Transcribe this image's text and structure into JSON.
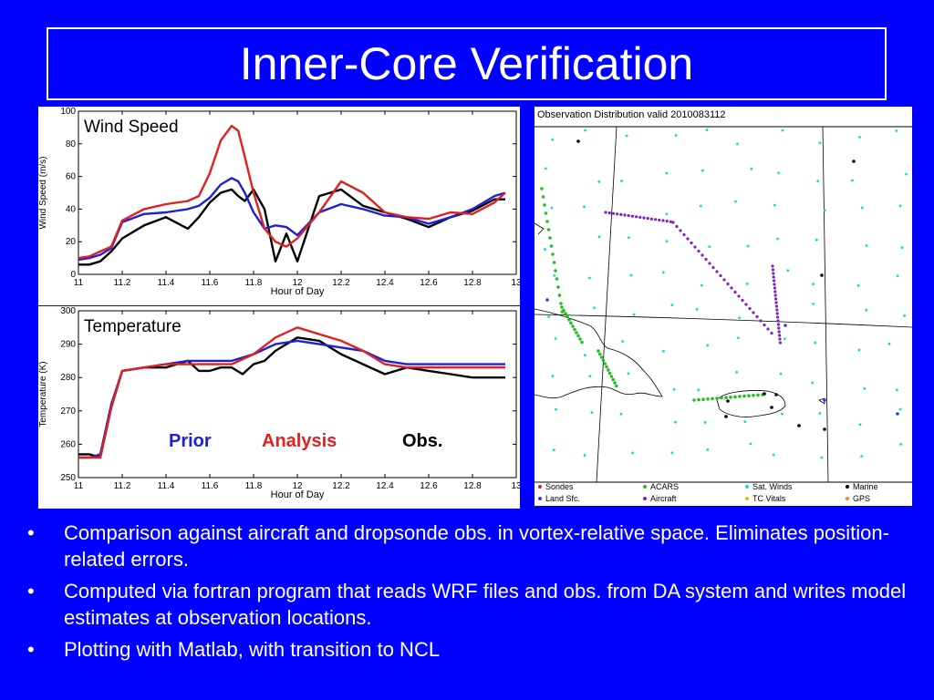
{
  "title": "Inner-Core Verification",
  "bullets": [
    "Comparison against aircraft and dropsonde obs. in vortex-relative space. Eliminates position-related errors.",
    "Computed via fortran program that reads WRF files and obs. from DA system and writes model estimates at observation locations.",
    "Plotting with Matlab, with transition to NCL"
  ],
  "bullet_symbol": "•",
  "legend": {
    "prior": "Prior",
    "analysis": "Analysis",
    "obs": "Obs."
  },
  "colors": {
    "prior": "#1f1fd6",
    "analysis": "#e02020",
    "obs": "#000000",
    "background": "#0000ff"
  },
  "chart_data": [
    {
      "type": "line",
      "title": "Wind Speed",
      "xlabel": "Hour of Day",
      "ylabel": "Wind Speed (m/s)",
      "xlim": [
        11,
        13
      ],
      "ylim": [
        0,
        100
      ],
      "xticks": [
        "11",
        "11.2",
        "11.4",
        "11.6",
        "11.8",
        "12",
        "12.2",
        "12.4",
        "12.6",
        "12.8",
        "13"
      ],
      "yticks": [
        "0",
        "20",
        "40",
        "60",
        "80",
        "100"
      ],
      "series": [
        {
          "name": "Prior",
          "color": "#1f1fd6",
          "x": [
            11,
            11.05,
            11.1,
            11.15,
            11.2,
            11.3,
            11.4,
            11.5,
            11.55,
            11.6,
            11.65,
            11.7,
            11.73,
            11.76,
            11.8,
            11.85,
            11.9,
            11.95,
            12,
            12.1,
            12.2,
            12.3,
            12.4,
            12.5,
            12.6,
            12.7,
            12.8,
            12.9,
            12.95
          ],
          "y": [
            9,
            10,
            12,
            16,
            32,
            37,
            38,
            40,
            42,
            47,
            55,
            59,
            57,
            50,
            38,
            28,
            30,
            29,
            24,
            38,
            43,
            40,
            36,
            35,
            31,
            35,
            40,
            48,
            50
          ]
        },
        {
          "name": "Analysis",
          "color": "#e02020",
          "x": [
            11,
            11.05,
            11.1,
            11.15,
            11.2,
            11.3,
            11.4,
            11.5,
            11.55,
            11.6,
            11.65,
            11.7,
            11.73,
            11.76,
            11.8,
            11.85,
            11.9,
            11.95,
            12,
            12.1,
            12.2,
            12.3,
            12.4,
            12.5,
            12.6,
            12.7,
            12.8,
            12.9,
            12.95
          ],
          "y": [
            10,
            11,
            14,
            17,
            33,
            40,
            43,
            45,
            48,
            62,
            82,
            91,
            88,
            72,
            50,
            28,
            20,
            17,
            22,
            38,
            57,
            50,
            38,
            35,
            34,
            38,
            37,
            44,
            50
          ]
        },
        {
          "name": "Obs.",
          "color": "#000000",
          "x": [
            11,
            11.05,
            11.1,
            11.15,
            11.2,
            11.3,
            11.4,
            11.5,
            11.55,
            11.6,
            11.65,
            11.7,
            11.73,
            11.76,
            11.8,
            11.85,
            11.9,
            11.95,
            12,
            12.1,
            12.2,
            12.3,
            12.4,
            12.5,
            12.6,
            12.7,
            12.8,
            12.9,
            12.95
          ],
          "y": [
            6,
            6,
            8,
            14,
            22,
            30,
            35,
            28,
            35,
            44,
            50,
            52,
            48,
            45,
            52,
            40,
            8,
            25,
            8,
            48,
            52,
            42,
            38,
            34,
            29,
            35,
            39,
            46,
            46
          ]
        }
      ]
    },
    {
      "type": "line",
      "title": "Temperature",
      "xlabel": "Hour of Day",
      "ylabel": "Temperature (K)",
      "xlim": [
        11,
        13
      ],
      "ylim": [
        250,
        300
      ],
      "xticks": [
        "11",
        "11.2",
        "11.4",
        "11.6",
        "11.8",
        "12",
        "12.2",
        "12.4",
        "12.6",
        "12.8",
        "13"
      ],
      "yticks": [
        "250",
        "260",
        "270",
        "280",
        "290",
        "300"
      ],
      "series": [
        {
          "name": "Prior",
          "color": "#1f1fd6",
          "x": [
            11,
            11.05,
            11.1,
            11.15,
            11.2,
            11.3,
            11.4,
            11.5,
            11.6,
            11.7,
            11.8,
            11.9,
            12,
            12.1,
            12.2,
            12.3,
            12.4,
            12.5,
            12.6,
            12.7,
            12.8,
            12.9,
            12.95
          ],
          "y": [
            256,
            256,
            257,
            272,
            282,
            283,
            284,
            285,
            285,
            285,
            287,
            290,
            291,
            290,
            289,
            288,
            285,
            284,
            284,
            284,
            284,
            284,
            284
          ]
        },
        {
          "name": "Analysis",
          "color": "#e02020",
          "x": [
            11,
            11.05,
            11.1,
            11.15,
            11.2,
            11.3,
            11.4,
            11.5,
            11.6,
            11.7,
            11.8,
            11.9,
            12,
            12.1,
            12.2,
            12.3,
            12.4,
            12.5,
            12.6,
            12.7,
            12.8,
            12.9,
            12.95
          ],
          "y": [
            256,
            256,
            256,
            271,
            282,
            283,
            284,
            284,
            284,
            284,
            287,
            292,
            295,
            293,
            291,
            288,
            284,
            283,
            283,
            283,
            283,
            283,
            283
          ]
        },
        {
          "name": "Obs.",
          "color": "#000000",
          "x": [
            11,
            11.05,
            11.1,
            11.15,
            11.2,
            11.3,
            11.4,
            11.5,
            11.55,
            11.6,
            11.65,
            11.7,
            11.75,
            11.8,
            11.85,
            11.9,
            11.95,
            12,
            12.1,
            12.2,
            12.3,
            12.4,
            12.5,
            12.6,
            12.7,
            12.8,
            12.9,
            12.95
          ],
          "y": [
            257,
            257,
            256,
            271,
            282,
            283,
            283,
            285,
            282,
            282,
            283,
            283,
            281,
            284,
            285,
            288,
            290,
            292,
            291,
            287,
            284,
            281,
            283,
            282,
            281,
            280,
            280,
            280
          ]
        }
      ]
    }
  ],
  "obs_map": {
    "title": "Observation Distribution valid 2010083112",
    "legend": [
      {
        "label": "Sondes",
        "color": "#e02020"
      },
      {
        "label": "Land Sfc.",
        "color": "#2040ff"
      },
      {
        "label": "ACARS",
        "color": "#20c020"
      },
      {
        "label": "Aircraft",
        "color": "#8020c0"
      },
      {
        "label": "Sat. Winds",
        "color": "#00e0e0"
      },
      {
        "label": "TC Vitals",
        "color": "#e0c000"
      },
      {
        "label": "Marine",
        "color": "#000000"
      },
      {
        "label": "GPS",
        "color": "#ff8040"
      }
    ]
  }
}
